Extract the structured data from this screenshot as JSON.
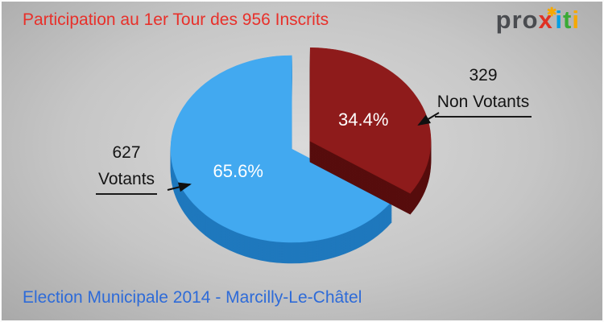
{
  "title": "Participation au 1er Tour des 956 Inscrits",
  "footer": "Election Municipale 2014 - Marcilly-Le-Châtel",
  "inscrits": 956,
  "logo": {
    "segments": [
      {
        "text": "pro",
        "color": "#4a4c50"
      },
      {
        "text": "x",
        "color": "#e03123"
      },
      {
        "text": "✱",
        "color": "#f6a800",
        "sup": true
      },
      {
        "text": "i",
        "color": "#009fe3"
      },
      {
        "text": "t",
        "color": "#3aaa35"
      },
      {
        "text": "i",
        "color": "#f6a800"
      }
    ]
  },
  "chart_data": {
    "type": "pie",
    "title": "Participation au 1er Tour des 956 Inscrits",
    "total": 956,
    "total_label": "956 Inscrits",
    "start_angle_deg": 34,
    "legend_position": "callouts",
    "effect": "3d-exploded",
    "slices": [
      {
        "label": "Votants",
        "count": 627,
        "pct": 65.6,
        "pct_label": "65.6%",
        "color": "#42a9f0",
        "side_color": "#1f78bd",
        "exploded": false
      },
      {
        "label": "Non Votants",
        "count": 329,
        "pct": 34.4,
        "pct_label": "34.4%",
        "color": "#8e1b1b",
        "side_color": "#570d0d",
        "exploded": true
      }
    ]
  }
}
